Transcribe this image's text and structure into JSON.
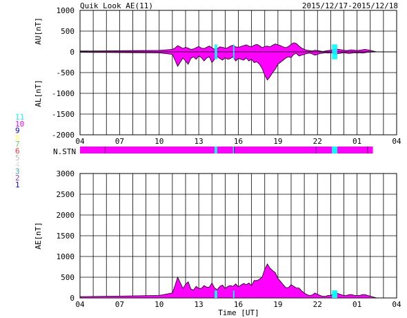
{
  "header": {
    "title": "Quik Look AE(11)",
    "date_range": "2015/12/17-2015/12/18"
  },
  "colors": {
    "magenta": "#ff00ff",
    "cyan": "#00ffff",
    "black": "#000000",
    "grid": "#000000",
    "background": "#ffffff",
    "station_legend": {
      "11": "#00ffff",
      "10": "#ff00ff",
      "9": "#0000cc",
      "8": "#ffff66",
      "7": "#66cc66",
      "6": "#ff3333",
      "5": "#bbbbbb",
      "4": "#dddddd",
      "3": "#33aaaa",
      "2": "#9933cc",
      "1": "#0000ff"
    }
  },
  "station_legend": [
    "11",
    "10",
    "9",
    "8",
    "7",
    "6",
    "5",
    "4",
    "3",
    "2",
    "1"
  ],
  "nstn_label": "N.STN",
  "x_ticks": [
    "04",
    "07",
    "10",
    "13",
    "16",
    "19",
    "22",
    "01",
    "04"
  ],
  "x_label": "Time [UT]",
  "chart_data": [
    {
      "type": "area",
      "name": "AU/AL",
      "ylabel_upper": "AU[nT]",
      "ylabel_lower": "AL[nT]",
      "ylim": [
        -2000,
        1000
      ],
      "y_ticks": [
        "1000",
        "500",
        "0",
        "-500",
        "-1000",
        "-1500",
        "-2000"
      ],
      "x_hours_from_04UT": [
        0,
        2,
        4,
        6,
        7,
        7.2,
        7.4,
        7.6,
        7.8,
        8,
        8.2,
        8.4,
        8.6,
        8.8,
        9,
        9.2,
        9.4,
        9.6,
        9.8,
        10,
        10.2,
        10.4,
        10.6,
        10.8,
        11,
        11.2,
        11.4,
        11.6,
        11.8,
        12,
        12.2,
        12.4,
        12.6,
        12.8,
        13,
        13.2,
        13.4,
        13.6,
        13.8,
        14,
        14.2,
        14.4,
        14.6,
        14.8,
        15,
        15.2,
        15.4,
        15.6,
        15.8,
        16,
        16.2,
        16.4,
        16.6,
        16.8,
        17,
        17.2,
        17.4,
        17.6,
        17.8,
        18,
        18.2,
        18.4,
        18.6,
        18.8,
        19,
        19.2,
        19.4,
        19.6,
        19.8,
        20,
        20.2,
        20.4,
        20.6,
        20.8,
        21,
        21.2,
        21.4,
        21.6,
        21.8,
        22.5
      ],
      "AU": [
        20,
        25,
        30,
        35,
        60,
        90,
        150,
        120,
        80,
        110,
        90,
        60,
        70,
        100,
        130,
        90,
        80,
        110,
        140,
        100,
        60,
        80,
        120,
        110,
        90,
        100,
        140,
        160,
        120,
        110,
        130,
        150,
        170,
        140,
        120,
        160,
        180,
        150,
        100,
        130,
        140,
        120,
        160,
        190,
        170,
        150,
        120,
        100,
        130,
        180,
        220,
        200,
        140,
        90,
        60,
        40,
        30,
        20,
        40,
        30,
        20,
        10,
        20,
        30,
        40,
        60,
        70,
        60,
        50,
        40,
        30,
        40,
        50,
        40,
        30,
        40,
        50,
        60,
        50,
        0
      ],
      "AL": [
        -10,
        -15,
        -20,
        -25,
        -60,
        -200,
        -350,
        -250,
        -150,
        -220,
        -300,
        -160,
        -120,
        -180,
        -100,
        -140,
        -220,
        -150,
        -120,
        -260,
        -180,
        -120,
        -160,
        -200,
        -140,
        -180,
        -160,
        -120,
        -220,
        -160,
        -180,
        -200,
        -150,
        -220,
        -180,
        -260,
        -240,
        -300,
        -400,
        -560,
        -680,
        -600,
        -500,
        -420,
        -300,
        -250,
        -200,
        -150,
        -120,
        -140,
        -60,
        -40,
        -100,
        -80,
        -60,
        -40,
        -30,
        -50,
        -80,
        -60,
        -40,
        -30,
        -20,
        -30,
        -20,
        -40,
        -60,
        -40,
        -30,
        -20,
        -30,
        -40,
        -30,
        -20,
        -30,
        -20,
        -30,
        -20,
        -10,
        0
      ]
    },
    {
      "type": "area",
      "name": "AE",
      "ylabel": "AE[nT]",
      "ylim": [
        0,
        3000
      ],
      "y_ticks": [
        "3000",
        "2500",
        "2000",
        "1500",
        "1000",
        "500",
        "0"
      ],
      "x_hours_from_04UT": [
        0,
        2,
        4,
        6,
        7,
        7.2,
        7.4,
        7.6,
        7.8,
        8,
        8.2,
        8.4,
        8.6,
        8.8,
        9,
        9.2,
        9.4,
        9.6,
        9.8,
        10,
        10.2,
        10.4,
        10.6,
        10.8,
        11,
        11.2,
        11.4,
        11.6,
        11.8,
        12,
        12.2,
        12.4,
        12.6,
        12.8,
        13,
        13.2,
        13.4,
        13.6,
        13.8,
        14,
        14.2,
        14.4,
        14.6,
        14.8,
        15,
        15.2,
        15.4,
        15.6,
        15.8,
        16,
        16.2,
        16.4,
        16.6,
        16.8,
        17,
        17.2,
        17.4,
        17.6,
        17.8,
        18,
        18.2,
        18.4,
        18.6,
        18.8,
        19,
        19.2,
        19.4,
        19.6,
        19.8,
        20,
        20.2,
        20.4,
        20.6,
        20.8,
        21,
        21.2,
        21.4,
        21.6,
        21.8,
        22.5
      ],
      "values": [
        30,
        40,
        50,
        60,
        120,
        300,
        500,
        370,
        230,
        330,
        390,
        220,
        190,
        280,
        230,
        230,
        300,
        260,
        260,
        360,
        240,
        200,
        280,
        310,
        230,
        280,
        300,
        280,
        340,
        270,
        310,
        350,
        320,
        360,
        300,
        420,
        420,
        450,
        500,
        690,
        820,
        720,
        660,
        610,
        470,
        400,
        320,
        250,
        250,
        320,
        280,
        240,
        240,
        170,
        120,
        80,
        60,
        70,
        120,
        90,
        60,
        40,
        40,
        60,
        60,
        100,
        130,
        100,
        80,
        60,
        60,
        80,
        80,
        60,
        60,
        60,
        80,
        80,
        60,
        0
      ]
    }
  ],
  "nstn_bar": {
    "default_count": 10,
    "segments_hours_from_04UT": [
      {
        "start": 0,
        "end": 10.2,
        "count": 10
      },
      {
        "start": 10.2,
        "end": 10.4,
        "count": 11
      },
      {
        "start": 10.4,
        "end": 11.6,
        "count": 10
      },
      {
        "start": 11.6,
        "end": 11.7,
        "count": 11
      },
      {
        "start": 11.7,
        "end": 19.1,
        "count": 10
      },
      {
        "start": 19.1,
        "end": 19.5,
        "count": 11
      },
      {
        "start": 19.5,
        "end": 22.2,
        "count": 10
      }
    ],
    "data_end_hours_from_04UT": 22.2
  },
  "ae_cyan_spans": [
    [
      10.2,
      10.4
    ],
    [
      11.6,
      11.7
    ],
    [
      19.1,
      19.5
    ]
  ]
}
